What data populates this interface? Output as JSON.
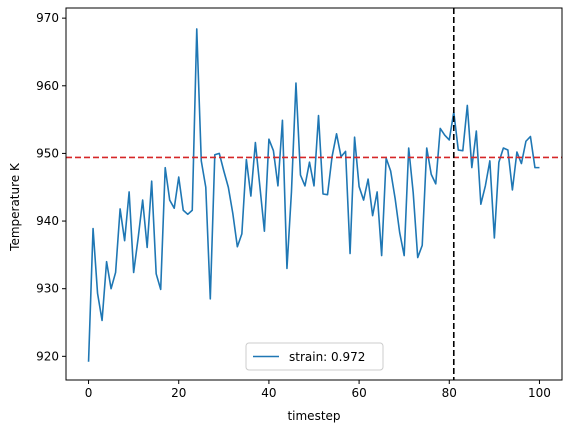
{
  "chart_data": {
    "type": "line",
    "xlabel": "timestep",
    "ylabel": "Temperature K",
    "xlim": [
      -5,
      105
    ],
    "ylim": [
      916.5,
      971.5
    ],
    "xticks": [
      0,
      20,
      40,
      60,
      80,
      100
    ],
    "yticks": [
      920,
      930,
      940,
      950,
      960,
      970
    ],
    "grid": false,
    "legend_position": "bottom-center",
    "series": [
      {
        "name": "strain: 0.972",
        "color": "#1f77b4",
        "x": [
          0,
          1,
          2,
          3,
          4,
          5,
          6,
          7,
          8,
          9,
          10,
          11,
          12,
          13,
          14,
          15,
          16,
          17,
          18,
          19,
          20,
          21,
          22,
          23,
          24,
          25,
          26,
          27,
          28,
          29,
          30,
          31,
          32,
          33,
          34,
          35,
          36,
          37,
          38,
          39,
          40,
          41,
          42,
          43,
          44,
          45,
          46,
          47,
          48,
          49,
          50,
          51,
          52,
          53,
          54,
          55,
          56,
          57,
          58,
          59,
          60,
          61,
          62,
          63,
          64,
          65,
          66,
          67,
          68,
          69,
          70,
          71,
          72,
          73,
          74,
          75,
          76,
          77,
          78,
          79,
          80,
          81,
          82,
          83,
          84,
          85,
          86,
          87,
          88,
          89,
          90,
          91,
          92,
          93,
          94,
          95,
          96,
          97,
          98,
          99,
          100
        ],
        "values": [
          919.2,
          938.9,
          929.3,
          925.3,
          934.0,
          930.0,
          932.4,
          941.8,
          937.1,
          944.3,
          932.4,
          937.5,
          943.1,
          936.1,
          945.9,
          932.2,
          929.9,
          947.9,
          943.1,
          941.9,
          946.5,
          941.6,
          941.0,
          941.6,
          968.4,
          948.9,
          945.0,
          928.5,
          949.8,
          950.0,
          947.4,
          945.0,
          941.1,
          936.2,
          938.1,
          949.1,
          943.7,
          951.6,
          945.1,
          938.5,
          952.1,
          950.4,
          945.2,
          954.9,
          933.0,
          944.3,
          960.4,
          946.8,
          945.2,
          948.7,
          945.2,
          955.6,
          944.0,
          943.9,
          949.5,
          952.9,
          949.5,
          950.3,
          935.2,
          952.4,
          945.1,
          943.1,
          946.2,
          940.8,
          944.3,
          934.9,
          949.3,
          947.4,
          943.3,
          938.3,
          934.9,
          950.8,
          944.2,
          934.6,
          936.4,
          950.8,
          946.9,
          945.5,
          953.7,
          952.7,
          952.0,
          956.1,
          950.5,
          950.4,
          957.1,
          947.9,
          953.3,
          942.5,
          945.2,
          948.9,
          937.5,
          948.7,
          950.8,
          950.5,
          944.6,
          950.2,
          948.5,
          951.8,
          952.5,
          947.9,
          947.9
        ]
      }
    ],
    "reference_lines": [
      {
        "orientation": "horizontal",
        "value": 949.4,
        "color": "#d62728",
        "style": "dashed"
      },
      {
        "orientation": "vertical",
        "value": 81,
        "color": "#000000",
        "style": "dashed"
      }
    ]
  }
}
